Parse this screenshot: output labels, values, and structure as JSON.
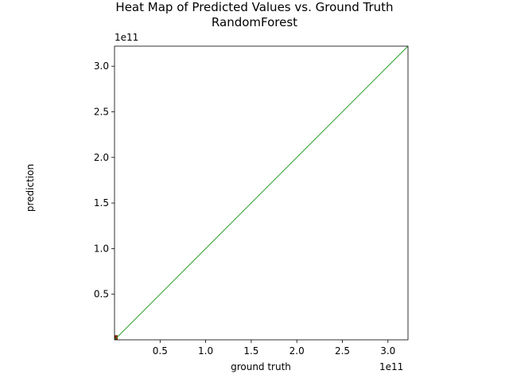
{
  "chart_data": {
    "type": "heatmap",
    "title_lines": [
      "Heat Map of Predicted Values vs. Ground Truth",
      "RandomForest"
    ],
    "xlabel": "ground truth",
    "ylabel": "prediction",
    "x_offset_label": "1e11",
    "y_offset_label": "1e11",
    "xlim": [
      0,
      3.22
    ],
    "ylim": [
      0,
      3.22
    ],
    "xticks": [
      0.5,
      1.0,
      1.5,
      2.0,
      2.5,
      3.0
    ],
    "yticks": [
      0.5,
      1.0,
      1.5,
      2.0,
      2.5,
      3.0
    ],
    "tick_labels": [
      "0.5",
      "1.0",
      "1.5",
      "2.0",
      "2.5",
      "3.0"
    ],
    "reference_line": {
      "x": [
        0,
        3.22
      ],
      "y": [
        0,
        3.22
      ],
      "color": "#2ca02c"
    },
    "heat_cells": [
      {
        "x": [
          0,
          0.035
        ],
        "y": [
          0,
          0.05
        ],
        "color": "#8b1a00"
      }
    ],
    "grid": false
  }
}
